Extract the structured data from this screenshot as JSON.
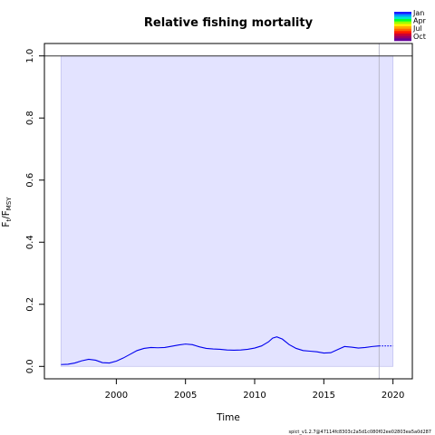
{
  "chart_data": {
    "type": "line",
    "title": "Relative fishing mortality",
    "xlabel": "Time",
    "ylabel": {
      "base": "F",
      "sub1": "t",
      "slash": "/F",
      "sub2": "MSY"
    },
    "xlim": [
      1994.8,
      2021.4
    ],
    "ylim": [
      -0.04,
      1.04
    ],
    "x_ticks": [
      2000,
      2005,
      2010,
      2015,
      2020
    ],
    "y_ticks": [
      0.0,
      0.2,
      0.4,
      0.6,
      0.8,
      1.0
    ],
    "y_tick_labels": [
      "0.0",
      "0.2",
      "0.4",
      "0.6",
      "0.8",
      "1.0"
    ],
    "reference_line_y": 1.0,
    "confidence_band": {
      "x_start": 1996.0,
      "x_end": 2020.0,
      "y_low": 0.0,
      "y_high": 1.0,
      "color": "#e3e3ff"
    },
    "end_of_data_x": 2019.0,
    "series": [
      {
        "style": "solid",
        "color": "#0000ee",
        "x": [
          1996.0,
          1996.5,
          1997.0,
          1997.5,
          1998.0,
          1998.5,
          1999.0,
          1999.5,
          2000.0,
          2000.5,
          2001.0,
          2001.5,
          2002.0,
          2002.5,
          2003.0,
          2003.5,
          2004.0,
          2004.5,
          2005.0,
          2005.5,
          2006.0,
          2006.5,
          2007.0,
          2007.5,
          2008.0,
          2008.5,
          2009.0,
          2009.5,
          2010.0,
          2010.5,
          2011.0,
          2011.3,
          2011.6,
          2012.0,
          2012.5,
          2013.0,
          2013.5,
          2014.0,
          2014.5,
          2015.0,
          2015.5,
          2016.0,
          2016.5,
          2017.0,
          2017.5,
          2018.0,
          2018.5,
          2019.0
        ],
        "y": [
          0.006,
          0.007,
          0.011,
          0.018,
          0.023,
          0.02,
          0.012,
          0.011,
          0.017,
          0.027,
          0.039,
          0.051,
          0.058,
          0.061,
          0.06,
          0.061,
          0.065,
          0.069,
          0.072,
          0.07,
          0.063,
          0.058,
          0.056,
          0.055,
          0.053,
          0.052,
          0.053,
          0.055,
          0.059,
          0.066,
          0.079,
          0.091,
          0.095,
          0.088,
          0.07,
          0.058,
          0.051,
          0.049,
          0.047,
          0.043,
          0.044,
          0.054,
          0.064,
          0.062,
          0.059,
          0.061,
          0.064,
          0.066
        ]
      },
      {
        "style": "dotted",
        "color": "#0000ee",
        "x": [
          2019.0,
          2019.5,
          2020.0
        ],
        "y": [
          0.066,
          0.066,
          0.066
        ]
      }
    ],
    "legend": {
      "placement": "top-right",
      "entries": [
        "Jan",
        "Apr",
        "Jul",
        "Oct"
      ],
      "colors": [
        "#1a1aff",
        "#0099ff",
        "#00e6cc",
        "#00ff33",
        "#99ff00",
        "#ffee00",
        "#ffaa00",
        "#ff6600",
        "#ff1a00",
        "#cc0033",
        "#990066",
        "#660099"
      ]
    },
    "grid": false
  },
  "footnote": "spict_v1.2.7@47114fc8303c2a5d1c080f02ee02803ea5a0d287"
}
